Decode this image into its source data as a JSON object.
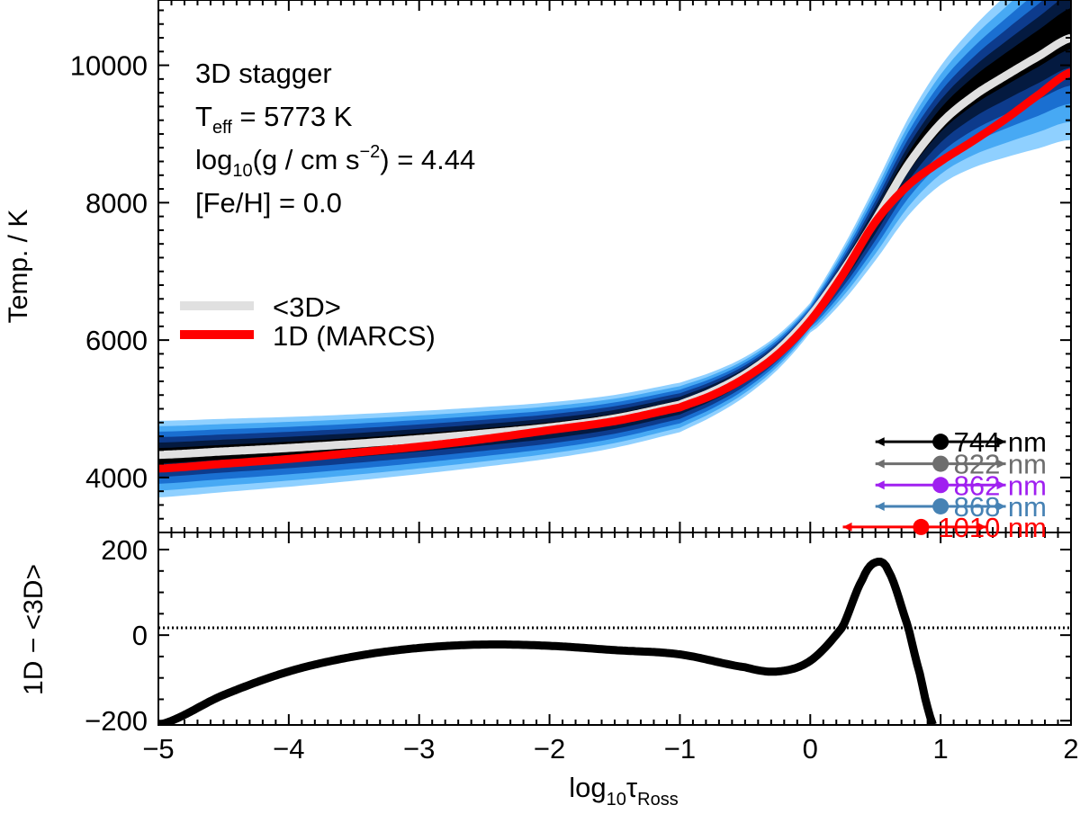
{
  "chart_data": [
    {
      "panel": "top",
      "type": "line",
      "xlabel": "log10 τRoss",
      "ylabel": "Temp. / K",
      "xlim": [
        -5,
        2
      ],
      "ylim": [
        3200,
        10950
      ],
      "yticks": [
        4000,
        6000,
        8000,
        10000
      ],
      "annotation": {
        "model": "3D stagger",
        "teff_label": "T",
        "teff_sub": "eff",
        "teff_value": " = 5773 K",
        "logg_pre": "log",
        "logg_sub": "10",
        "logg_mid": "(g / cm s",
        "logg_sup": "−2",
        "logg_post": ") = 4.44",
        "feh": "[Fe/H] =  0.0"
      },
      "series": [
        {
          "name": "<3D>",
          "color": "#e0e0e0",
          "x": [
            -5,
            -4.5,
            -4,
            -3.5,
            -3,
            -2.5,
            -2,
            -1.5,
            -1,
            -0.75,
            -0.5,
            -0.25,
            0,
            0.25,
            0.5,
            0.75,
            1,
            1.25,
            1.5,
            1.75,
            2
          ],
          "y": [
            4330,
            4380,
            4430,
            4490,
            4560,
            4640,
            4730,
            4860,
            5060,
            5250,
            5500,
            5850,
            6350,
            7000,
            7750,
            8550,
            9150,
            9550,
            9850,
            10130,
            10400
          ]
        },
        {
          "name": "1D (MARCS)",
          "color": "#ff0000",
          "x": [
            -5,
            -4.5,
            -4,
            -3.5,
            -3,
            -2.5,
            -2,
            -1.5,
            -1,
            -0.75,
            -0.5,
            -0.25,
            0,
            0.25,
            0.5,
            0.75,
            1,
            1.25,
            1.5,
            1.75,
            2
          ],
          "y": [
            4130,
            4200,
            4270,
            4360,
            4450,
            4560,
            4690,
            4820,
            5020,
            5200,
            5450,
            5790,
            6280,
            6950,
            7720,
            8250,
            8600,
            8900,
            9220,
            9570,
            9900
          ]
        }
      ],
      "lines_legend": [
        {
          "label": "<3D>",
          "color": "#e0e0e0"
        },
        {
          "label": "1D (MARCS)",
          "color": "#ff0000"
        }
      ],
      "wavelength_markers": [
        {
          "label": "744",
          "unit": "nm",
          "color": "#000000",
          "center": 1.0,
          "low": 0.5,
          "high": 1.5,
          "y": 4520
        },
        {
          "label": "822",
          "unit": "nm",
          "color": "#6e6e6e",
          "center": 1.0,
          "low": 0.5,
          "high": 1.5,
          "y": 4200
        },
        {
          "label": "862",
          "unit": "nm",
          "color": "#a020f0",
          "center": 1.0,
          "low": 0.5,
          "high": 1.5,
          "y": 3890
        },
        {
          "label": "868",
          "unit": "nm",
          "color": "#4682b4",
          "center": 1.0,
          "low": 0.5,
          "high": 1.5,
          "y": 3580
        },
        {
          "label": "1010",
          "unit": "nm",
          "color": "#ff0000",
          "center": 0.85,
          "low": 0.25,
          "high": 1.35,
          "y": 3280
        }
      ],
      "density_colors": [
        "#8fd0ff",
        "#47a9f4",
        "#1a6fd1",
        "#0d3b8c",
        "#041a40",
        "#000000"
      ]
    },
    {
      "panel": "bottom",
      "type": "line",
      "xlabel": "log10 τRoss",
      "ylabel": "1D − <3D>",
      "xlim": [
        -5,
        2
      ],
      "ylim": [
        -210,
        240
      ],
      "yticks": [
        -200,
        0,
        200
      ],
      "xticks": [
        -5,
        -4,
        -3,
        -2,
        -1,
        0,
        1,
        2
      ],
      "series": [
        {
          "name": "1D − <3D>",
          "color": "#000000",
          "x": [
            -5,
            -4.5,
            -4,
            -3.5,
            -3,
            -2.5,
            -2,
            -1.5,
            -1,
            -0.5,
            -0.25,
            0,
            0.25,
            0.4,
            0.5,
            0.6,
            0.75,
            0.85,
            0.9,
            0.95
          ],
          "y": [
            -210,
            -140,
            -85,
            -50,
            -30,
            -22,
            -25,
            -35,
            -45,
            -75,
            -85,
            -60,
            20,
            130,
            170,
            150,
            20,
            -100,
            -170,
            -215
          ]
        }
      ],
      "zero_line": 0
    }
  ],
  "labels": {
    "ylabel_top": "Temp. / K",
    "ylabel_bottom": "1D − <3D>",
    "xlabel_main": "log",
    "xlabel_sub1": "10",
    "xlabel_tau": "τ",
    "xlabel_sub2": "Ross"
  }
}
